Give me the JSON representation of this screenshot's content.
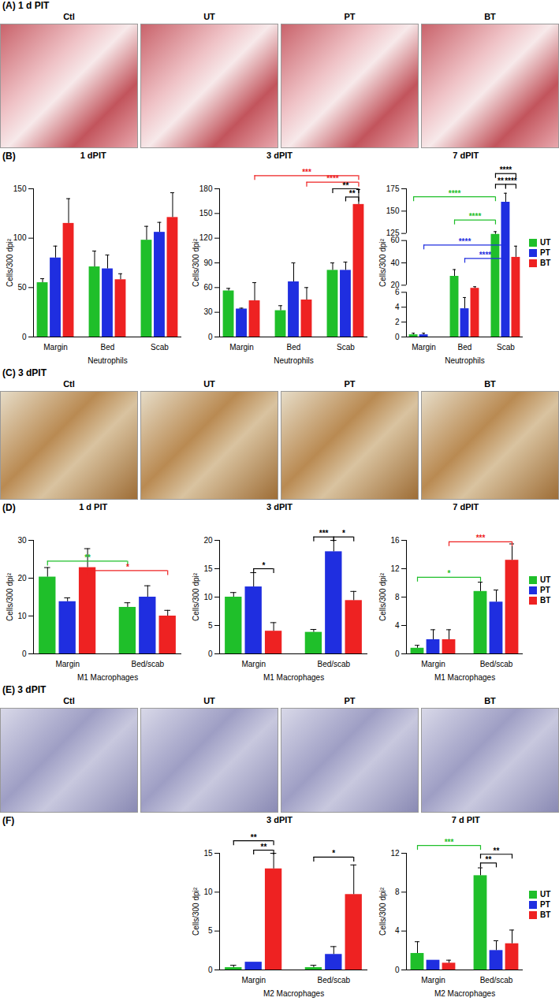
{
  "image_panels": [
    {
      "panel": "(A)",
      "title": "1 d PIT",
      "labels": [
        "Ctl",
        "UT",
        "PT",
        "BT"
      ]
    },
    {
      "panel": "(C)",
      "title": "3 dPIT",
      "labels": [
        "Ctl",
        "UT",
        "PT",
        "BT"
      ]
    },
    {
      "panel": "(E)",
      "title": "3 dPIT",
      "labels": [
        "Ctl",
        "UT",
        "PT",
        "BT"
      ]
    }
  ],
  "chart_data": [
    {
      "panel": "(B)",
      "type": "bar",
      "title": "1 dPIT",
      "x_label": "Neutrophils",
      "y_label": "Cells/300 dpi²",
      "categories": [
        "Margin",
        "Bed",
        "Scab"
      ],
      "series": [
        {
          "name": "UT",
          "color": "#1fbf2a",
          "values": [
            55,
            71,
            98
          ],
          "errors": [
            4,
            16,
            14
          ]
        },
        {
          "name": "PT",
          "color": "#1f2ee0",
          "values": [
            80,
            69,
            106
          ],
          "errors": [
            12,
            14,
            10
          ]
        },
        {
          "name": "BT",
          "color": "#ee2222",
          "values": [
            115,
            58,
            121
          ],
          "errors": [
            25,
            6,
            25
          ]
        }
      ],
      "ylim": [
        0,
        150
      ],
      "yticks": [
        0,
        50,
        100,
        150
      ],
      "annotations": []
    },
    {
      "panel": "(B)",
      "type": "bar",
      "title": "3 dPIT",
      "x_label": "Neutrophils",
      "y_label": "Cells/300 dpi²",
      "categories": [
        "Margin",
        "Bed",
        "Scab"
      ],
      "series": [
        {
          "name": "UT",
          "color": "#1fbf2a",
          "values": [
            56,
            32,
            81
          ],
          "errors": [
            3,
            6,
            9
          ]
        },
        {
          "name": "PT",
          "color": "#1f2ee0",
          "values": [
            34,
            67,
            81
          ],
          "errors": [
            1,
            23,
            10
          ]
        },
        {
          "name": "BT",
          "color": "#ee2222",
          "values": [
            44,
            45,
            161
          ],
          "errors": [
            22,
            15,
            18
          ]
        }
      ],
      "ylim": [
        0,
        180
      ],
      "yticks": [
        0,
        30,
        60,
        90,
        120,
        150,
        180
      ],
      "annotations": [
        {
          "text": "***",
          "from": {
            "category": "Margin",
            "series": "BT"
          },
          "to": {
            "category": "Scab",
            "series": "BT"
          },
          "y": 196,
          "color": "#ee2222"
        },
        {
          "text": "****",
          "from": {
            "category": "Bed",
            "series": "BT"
          },
          "to": {
            "category": "Scab",
            "series": "BT"
          },
          "y": 188,
          "color": "#ee2222"
        },
        {
          "text": "**",
          "from": {
            "category": "Scab",
            "series": "UT"
          },
          "to": {
            "category": "Scab",
            "series": "BT"
          },
          "y": 180,
          "color": "#000000"
        },
        {
          "text": "**",
          "from": {
            "category": "Scab",
            "series": "PT"
          },
          "to": {
            "category": "Scab",
            "series": "BT"
          },
          "y": 170,
          "color": "#000000"
        }
      ]
    },
    {
      "panel": "(B)",
      "type": "bar",
      "title": "7 dPIT",
      "x_label": "Neutrophils",
      "y_label": "Cells/300 dpi²",
      "legend": "right",
      "categories": [
        "Margin",
        "Bed",
        "Scab"
      ],
      "series": [
        {
          "name": "UT",
          "color": "#1fbf2a",
          "values": [
            0.3,
            28,
            117
          ],
          "errors": [
            0.2,
            6,
            10
          ]
        },
        {
          "name": "PT",
          "color": "#1f2ee0",
          "values": [
            0.3,
            3.8,
            160
          ],
          "errors": [
            0.2,
            1.5,
            10
          ]
        },
        {
          "name": "BT",
          "color": "#ee2222",
          "values": [
            0,
            14,
            45
          ],
          "errors": [
            0,
            3,
            10
          ]
        }
      ],
      "ylim": [
        0,
        175
      ],
      "yticks": [
        0,
        2,
        4,
        6,
        20,
        40,
        60,
        125,
        150,
        175
      ],
      "annotations": [
        {
          "text": "****",
          "from": {
            "category": "Scab",
            "series": "UT"
          },
          "to": {
            "category": "Scab",
            "series": "BT"
          },
          "y": 192,
          "color": "#000000"
        },
        {
          "text": "**",
          "from": {
            "category": "Scab",
            "series": "UT"
          },
          "to": {
            "category": "Scab",
            "series": "PT"
          },
          "y": 180,
          "color": "#000000"
        },
        {
          "text": "****",
          "from": {
            "category": "Scab",
            "series": "PT"
          },
          "to": {
            "category": "Scab",
            "series": "BT"
          },
          "y": 180,
          "color": "#000000"
        },
        {
          "text": "****",
          "from": {
            "category": "Margin",
            "series": "UT"
          },
          "to": {
            "category": "Scab",
            "series": "UT"
          },
          "y": 166,
          "color": "#1fbf2a"
        },
        {
          "text": "****",
          "from": {
            "category": "Bed",
            "series": "UT"
          },
          "to": {
            "category": "Scab",
            "series": "UT"
          },
          "y": 140,
          "color": "#1fbf2a"
        },
        {
          "text": "****",
          "from": {
            "category": "Margin",
            "series": "PT"
          },
          "to": {
            "category": "Scab",
            "series": "PT"
          },
          "y": 56,
          "color": "#1f2ee0"
        },
        {
          "text": "****",
          "from": {
            "category": "Bed",
            "series": "PT"
          },
          "to": {
            "category": "Scab",
            "series": "PT"
          },
          "y": 44,
          "color": "#1f2ee0"
        }
      ]
    },
    {
      "panel": "(D)",
      "type": "bar",
      "title": "1 d PIT",
      "x_label": "M1 Macrophages",
      "y_label": "Cells/300 dpi²",
      "categories": [
        "Margin",
        "Bed/scab"
      ],
      "series": [
        {
          "name": "UT",
          "color": "#1fbf2a",
          "values": [
            20.3,
            12.3
          ],
          "errors": [
            2.5,
            1.2
          ]
        },
        {
          "name": "PT",
          "color": "#1f2ee0",
          "values": [
            13.8,
            15
          ],
          "errors": [
            1,
            3
          ]
        },
        {
          "name": "BT",
          "color": "#ee2222",
          "values": [
            22.8,
            10
          ],
          "errors": [
            5,
            1.5
          ]
        }
      ],
      "ylim": [
        0,
        30
      ],
      "yticks": [
        0,
        10,
        20,
        30
      ],
      "annotations": [
        {
          "text": "**",
          "from": {
            "category": "Margin",
            "series": "UT"
          },
          "to": {
            "category": "Bed/scab",
            "series": "UT"
          },
          "y": 24.5,
          "color": "#1fbf2a"
        },
        {
          "text": "*",
          "from": {
            "category": "Margin",
            "series": "BT"
          },
          "to": {
            "category": "Bed/scab",
            "series": "BT"
          },
          "y": 22,
          "color": "#ee2222"
        }
      ]
    },
    {
      "panel": "(D)",
      "type": "bar",
      "title": "3 dPIT",
      "x_label": "M1 Macrophages",
      "y_label": "Cells/300 dpi²",
      "categories": [
        "Margin",
        "Bed/scab"
      ],
      "series": [
        {
          "name": "UT",
          "color": "#1fbf2a",
          "values": [
            10,
            3.8
          ],
          "errors": [
            0.8,
            0.5
          ]
        },
        {
          "name": "PT",
          "color": "#1f2ee0",
          "values": [
            11.8,
            18
          ],
          "errors": [
            2.5,
            2
          ]
        },
        {
          "name": "BT",
          "color": "#ee2222",
          "values": [
            4,
            9.4
          ],
          "errors": [
            1.5,
            1.6
          ]
        }
      ],
      "ylim": [
        0,
        20
      ],
      "yticks": [
        0,
        5,
        10,
        15,
        20
      ],
      "annotations": [
        {
          "text": "*",
          "from": {
            "category": "Margin",
            "series": "PT"
          },
          "to": {
            "category": "Margin",
            "series": "BT"
          },
          "y": 15,
          "color": "#000000"
        },
        {
          "text": "***",
          "from": {
            "category": "Bed/scab",
            "series": "UT"
          },
          "to": {
            "category": "Bed/scab",
            "series": "PT"
          },
          "y": 20.6,
          "color": "#000000"
        },
        {
          "text": "*",
          "from": {
            "category": "Bed/scab",
            "series": "PT"
          },
          "to": {
            "category": "Bed/scab",
            "series": "BT"
          },
          "y": 20.6,
          "color": "#000000"
        }
      ]
    },
    {
      "panel": "(D)",
      "type": "bar",
      "title": "7 dPIT",
      "x_label": "M1 Macrophages",
      "y_label": "Cells/300 dpi²",
      "legend": "right",
      "categories": [
        "Margin",
        "Bed/scab"
      ],
      "series": [
        {
          "name": "UT",
          "color": "#1fbf2a",
          "values": [
            0.8,
            8.8
          ],
          "errors": [
            0.4,
            1.3
          ]
        },
        {
          "name": "PT",
          "color": "#1f2ee0",
          "values": [
            2,
            7.3
          ],
          "errors": [
            1.4,
            1.7
          ]
        },
        {
          "name": "BT",
          "color": "#ee2222",
          "values": [
            2,
            13.2
          ],
          "errors": [
            1.4,
            2.3
          ]
        }
      ],
      "ylim": [
        0,
        16
      ],
      "yticks": [
        0,
        4,
        8,
        12,
        16
      ],
      "annotations": [
        {
          "text": "*",
          "from": {
            "category": "Margin",
            "series": "UT"
          },
          "to": {
            "category": "Bed/scab",
            "series": "UT"
          },
          "y": 10.8,
          "color": "#1fbf2a"
        },
        {
          "text": "***",
          "from": {
            "category": "Margin",
            "series": "BT"
          },
          "to": {
            "category": "Bed/scab",
            "series": "BT"
          },
          "y": 15.8,
          "color": "#ee2222"
        }
      ]
    },
    {
      "panel": "(F)",
      "type": "bar",
      "title": "3 dPIT",
      "x_label": "M2 Macrophages",
      "y_label": "Cells/300 dpi²",
      "categories": [
        "Margin",
        "Bed/scab"
      ],
      "series": [
        {
          "name": "UT",
          "color": "#1fbf2a",
          "values": [
            0.3,
            0.3
          ],
          "errors": [
            0.3,
            0.3
          ]
        },
        {
          "name": "PT",
          "color": "#1f2ee0",
          "values": [
            1,
            2
          ],
          "errors": [
            0,
            1
          ]
        },
        {
          "name": "BT",
          "color": "#ee2222",
          "values": [
            13,
            9.7
          ],
          "errors": [
            2,
            3.8
          ]
        }
      ],
      "ylim": [
        0,
        15
      ],
      "yticks": [
        0,
        5,
        10,
        15
      ],
      "annotations": [
        {
          "text": "**",
          "from": {
            "category": "Margin",
            "series": "UT"
          },
          "to": {
            "category": "Margin",
            "series": "BT"
          },
          "y": 16.6,
          "color": "#000000"
        },
        {
          "text": "**",
          "from": {
            "category": "Margin",
            "series": "PT"
          },
          "to": {
            "category": "Margin",
            "series": "BT"
          },
          "y": 15.4,
          "color": "#000000"
        },
        {
          "text": "*",
          "from": {
            "category": "Bed/scab",
            "series": "UT"
          },
          "to": {
            "category": "Bed/scab",
            "series": "BT"
          },
          "y": 14.5,
          "color": "#000000"
        }
      ]
    },
    {
      "panel": "(F)",
      "type": "bar",
      "title": "7 d PIT",
      "x_label": "M2 Macrophages",
      "y_label": "Cells/300 dpi²",
      "legend": "right",
      "categories": [
        "Margin",
        "Bed/scab"
      ],
      "series": [
        {
          "name": "UT",
          "color": "#1fbf2a",
          "values": [
            1.7,
            9.7
          ],
          "errors": [
            1.2,
            0.8
          ]
        },
        {
          "name": "PT",
          "color": "#1f2ee0",
          "values": [
            1,
            2
          ],
          "errors": [
            0,
            1
          ]
        },
        {
          "name": "BT",
          "color": "#ee2222",
          "values": [
            0.7,
            2.7
          ],
          "errors": [
            0.3,
            1.4
          ]
        }
      ],
      "ylim": [
        0,
        12
      ],
      "yticks": [
        0,
        4,
        8,
        12
      ],
      "annotations": [
        {
          "text": "***",
          "from": {
            "category": "Margin",
            "series": "UT"
          },
          "to": {
            "category": "Bed/scab",
            "series": "UT"
          },
          "y": 12.8,
          "color": "#1fbf2a"
        },
        {
          "text": "**",
          "from": {
            "category": "Bed/scab",
            "series": "UT"
          },
          "to": {
            "category": "Bed/scab",
            "series": "BT"
          },
          "y": 11.9,
          "color": "#000000"
        },
        {
          "text": "**",
          "from": {
            "category": "Bed/scab",
            "series": "UT"
          },
          "to": {
            "category": "Bed/scab",
            "series": "PT"
          },
          "y": 11,
          "color": "#000000"
        }
      ]
    }
  ]
}
